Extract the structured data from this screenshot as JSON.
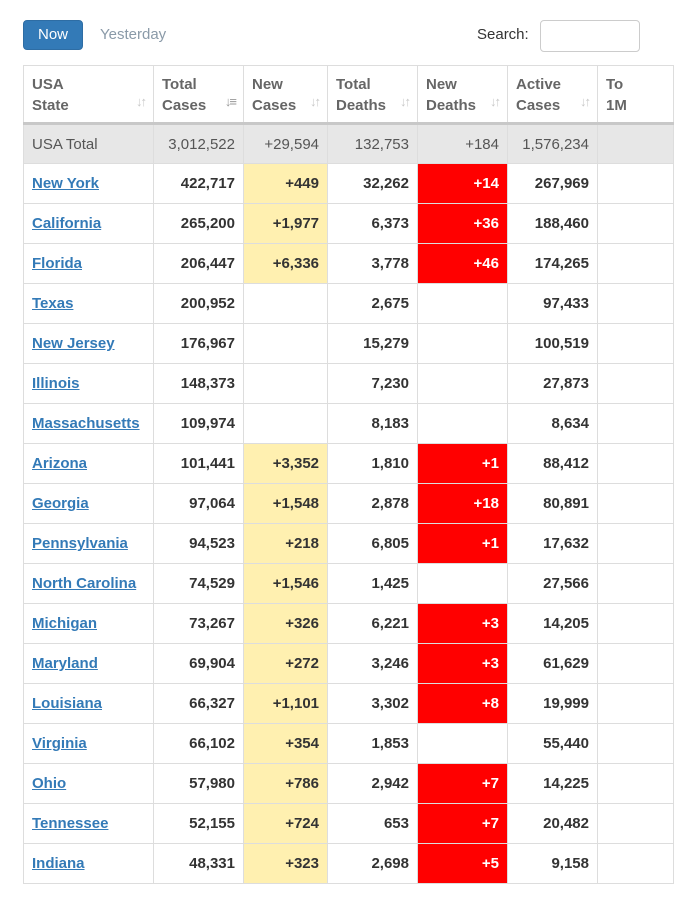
{
  "controls": {
    "now_label": "Now",
    "yesterday_label": "Yesterday",
    "search_label": "Search:",
    "search_value": ""
  },
  "colors": {
    "accent": "#337ab7",
    "new_cases_highlight": "#fff0b0",
    "new_deaths_highlight": "#ff0000",
    "total_row_bg": "#e7e7e7"
  },
  "table": {
    "columns": [
      {
        "line1": "USA",
        "line2": "State",
        "sort": "sort-both-icon"
      },
      {
        "line1": "Total",
        "line2": "Cases",
        "sort": "sort-desc-icon"
      },
      {
        "line1": "New",
        "line2": "Cases",
        "sort": "sort-both-icon"
      },
      {
        "line1": "Total",
        "line2": "Deaths",
        "sort": "sort-both-icon"
      },
      {
        "line1": "New",
        "line2": "Deaths",
        "sort": "sort-both-icon"
      },
      {
        "line1": "Active",
        "line2": "Cases",
        "sort": "sort-both-icon"
      },
      {
        "line1": "To",
        "line2": "1M",
        "sort": ""
      }
    ],
    "total_row": {
      "state": "USA Total",
      "total_cases": "3,012,522",
      "new_cases": "+29,594",
      "total_deaths": "132,753",
      "new_deaths": "+184",
      "active_cases": "1,576,234",
      "extra": ""
    },
    "rows": [
      {
        "state": "New York",
        "total_cases": "422,717",
        "new_cases": "+449",
        "total_deaths": "32,262",
        "new_deaths": "+14",
        "active_cases": "267,969"
      },
      {
        "state": "California",
        "total_cases": "265,200",
        "new_cases": "+1,977",
        "total_deaths": "6,373",
        "new_deaths": "+36",
        "active_cases": "188,460"
      },
      {
        "state": "Florida",
        "total_cases": "206,447",
        "new_cases": "+6,336",
        "total_deaths": "3,778",
        "new_deaths": "+46",
        "active_cases": "174,265"
      },
      {
        "state": "Texas",
        "total_cases": "200,952",
        "new_cases": "",
        "total_deaths": "2,675",
        "new_deaths": "",
        "active_cases": "97,433"
      },
      {
        "state": "New Jersey",
        "total_cases": "176,967",
        "new_cases": "",
        "total_deaths": "15,279",
        "new_deaths": "",
        "active_cases": "100,519"
      },
      {
        "state": "Illinois",
        "total_cases": "148,373",
        "new_cases": "",
        "total_deaths": "7,230",
        "new_deaths": "",
        "active_cases": "27,873"
      },
      {
        "state": "Massachusetts",
        "total_cases": "109,974",
        "new_cases": "",
        "total_deaths": "8,183",
        "new_deaths": "",
        "active_cases": "8,634"
      },
      {
        "state": "Arizona",
        "total_cases": "101,441",
        "new_cases": "+3,352",
        "total_deaths": "1,810",
        "new_deaths": "+1",
        "active_cases": "88,412"
      },
      {
        "state": "Georgia",
        "total_cases": "97,064",
        "new_cases": "+1,548",
        "total_deaths": "2,878",
        "new_deaths": "+18",
        "active_cases": "80,891"
      },
      {
        "state": "Pennsylvania",
        "total_cases": "94,523",
        "new_cases": "+218",
        "total_deaths": "6,805",
        "new_deaths": "+1",
        "active_cases": "17,632"
      },
      {
        "state": "North Carolina",
        "total_cases": "74,529",
        "new_cases": "+1,546",
        "total_deaths": "1,425",
        "new_deaths": "",
        "active_cases": "27,566"
      },
      {
        "state": "Michigan",
        "total_cases": "73,267",
        "new_cases": "+326",
        "total_deaths": "6,221",
        "new_deaths": "+3",
        "active_cases": "14,205"
      },
      {
        "state": "Maryland",
        "total_cases": "69,904",
        "new_cases": "+272",
        "total_deaths": "3,246",
        "new_deaths": "+3",
        "active_cases": "61,629"
      },
      {
        "state": "Louisiana",
        "total_cases": "66,327",
        "new_cases": "+1,101",
        "total_deaths": "3,302",
        "new_deaths": "+8",
        "active_cases": "19,999"
      },
      {
        "state": "Virginia",
        "total_cases": "66,102",
        "new_cases": "+354",
        "total_deaths": "1,853",
        "new_deaths": "",
        "active_cases": "55,440"
      },
      {
        "state": "Ohio",
        "total_cases": "57,980",
        "new_cases": "+786",
        "total_deaths": "2,942",
        "new_deaths": "+7",
        "active_cases": "14,225"
      },
      {
        "state": "Tennessee",
        "total_cases": "52,155",
        "new_cases": "+724",
        "total_deaths": "653",
        "new_deaths": "+7",
        "active_cases": "20,482"
      },
      {
        "state": "Indiana",
        "total_cases": "48,331",
        "new_cases": "+323",
        "total_deaths": "2,698",
        "new_deaths": "+5",
        "active_cases": "9,158"
      }
    ]
  }
}
